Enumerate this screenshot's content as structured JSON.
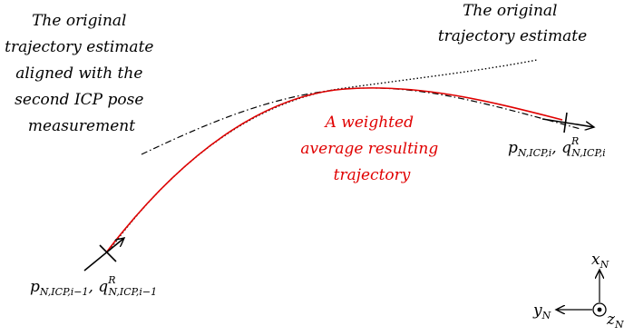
{
  "labels": {
    "aligned_trajectory": [
      "The original",
      "trajectory estimate",
      "aligned with the",
      "second ICP pose",
      "measurement"
    ],
    "original_trajectory": [
      "The original",
      "trajectory estimate"
    ],
    "weighted_average": [
      "A weighted",
      "average resulting",
      "trajectory"
    ]
  },
  "math": {
    "end_pose": {
      "p": "p",
      "p_sub": "N,ICP,i",
      "q": "q",
      "q_sup": "R",
      "q_sub": "N,ICP,i"
    },
    "start_pose": {
      "p": "p",
      "p_sub": "N,ICP,i−1",
      "q": "q",
      "q_sup": "R",
      "q_sub": "N,ICP,i−1"
    },
    "separator": ", "
  },
  "axes": {
    "x": "x",
    "x_sub": "N",
    "y": "y",
    "y_sub": "N",
    "z": "z",
    "z_sub": "N"
  },
  "colors": {
    "weighted_trajectory": "#e00000",
    "text": "#000000"
  }
}
